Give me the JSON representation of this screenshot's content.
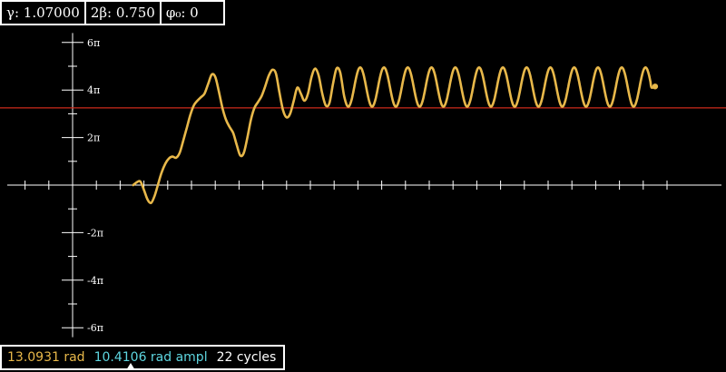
{
  "params": {
    "gamma": "γ: 1.07000",
    "beta": "2β: 0.750",
    "phi0": "φ₀: 0"
  },
  "status": {
    "angle": "13.0931 rad",
    "amplitude": "10.4106 rad ampl",
    "cycles": "22 cycles"
  },
  "colors": {
    "background": "#000000",
    "axes": "#ffffff",
    "trajectory": "#e8b84a",
    "reference_line": "#cc2a1a",
    "amplitude_text": "#5ed6e0"
  },
  "chart_data": {
    "type": "line",
    "title": "",
    "xlabel": "",
    "ylabel": "",
    "y_unit": "π",
    "ylim": [
      -6.4,
      6.4
    ],
    "y_ticks": [
      {
        "value": 6,
        "label": "6π"
      },
      {
        "value": 4,
        "label": "4π"
      },
      {
        "value": 2,
        "label": "2π"
      },
      {
        "value": -2,
        "label": "-2π"
      },
      {
        "value": -4,
        "label": "-4π"
      },
      {
        "value": -6,
        "label": "-6π"
      }
    ],
    "x_range_cycles": [
      -3,
      25
    ],
    "reference_line_y": 3.25,
    "series": [
      {
        "color": "#e8b84a",
        "points": [
          [
            2.55,
            0
          ],
          [
            2.7,
            0.12
          ],
          [
            2.85,
            0.15
          ],
          [
            3.0,
            -0.2
          ],
          [
            3.15,
            -0.6
          ],
          [
            3.3,
            -0.75
          ],
          [
            3.45,
            -0.45
          ],
          [
            3.6,
            0.05
          ],
          [
            3.75,
            0.55
          ],
          [
            3.9,
            0.9
          ],
          [
            4.05,
            1.12
          ],
          [
            4.2,
            1.2
          ],
          [
            4.35,
            1.15
          ],
          [
            4.5,
            1.35
          ],
          [
            4.65,
            1.85
          ],
          [
            4.8,
            2.4
          ],
          [
            4.95,
            2.95
          ],
          [
            5.1,
            3.35
          ],
          [
            5.25,
            3.55
          ],
          [
            5.4,
            3.7
          ],
          [
            5.55,
            3.85
          ],
          [
            5.7,
            4.25
          ],
          [
            5.85,
            4.65
          ],
          [
            6.0,
            4.55
          ],
          [
            6.15,
            3.95
          ],
          [
            6.3,
            3.25
          ],
          [
            6.45,
            2.75
          ],
          [
            6.6,
            2.45
          ],
          [
            6.75,
            2.2
          ],
          [
            6.9,
            1.7
          ],
          [
            7.05,
            1.25
          ],
          [
            7.2,
            1.35
          ],
          [
            7.35,
            2.0
          ],
          [
            7.5,
            2.75
          ],
          [
            7.65,
            3.25
          ],
          [
            7.8,
            3.5
          ],
          [
            7.95,
            3.75
          ],
          [
            8.1,
            4.15
          ],
          [
            8.25,
            4.6
          ],
          [
            8.4,
            4.85
          ],
          [
            8.55,
            4.7
          ],
          [
            8.7,
            3.9
          ],
          [
            8.85,
            3.15
          ],
          [
            9.0,
            2.85
          ],
          [
            9.15,
            3.0
          ],
          [
            9.3,
            3.55
          ],
          [
            9.45,
            4.1
          ],
          [
            9.6,
            3.85
          ],
          [
            9.75,
            3.55
          ],
          [
            9.9,
            3.85
          ],
          [
            10.05,
            4.55
          ],
          [
            10.2,
            4.9
          ],
          [
            10.35,
            4.6
          ],
          [
            10.5,
            3.85
          ],
          [
            10.65,
            3.35
          ],
          [
            10.8,
            3.45
          ],
          [
            10.95,
            4.25
          ],
          [
            11.1,
            4.9
          ],
          [
            11.25,
            4.75
          ],
          [
            11.4,
            3.85
          ]
        ],
        "steady_oscillation": {
          "from_cycle": 11.4,
          "to_cycle": 24.4,
          "y_min": 3.3,
          "y_max": 4.95,
          "period_cycles": 1.0
        },
        "end_point": [
          24.5,
          4.15
        ]
      }
    ],
    "grid": false,
    "legend": "none"
  }
}
